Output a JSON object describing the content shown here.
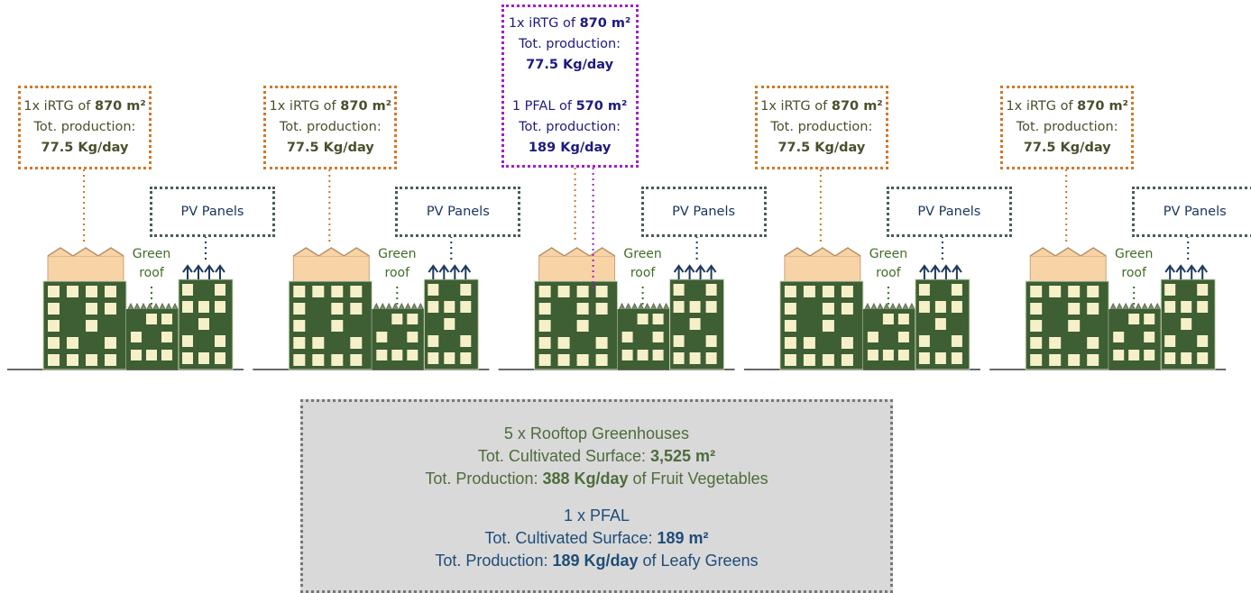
{
  "units": [
    {
      "irtg": {
        "prefix": "1x iRTG of ",
        "area": "870 m²",
        "production_label": "Tot. production:",
        "production": "77.5 Kg/day"
      },
      "pv": "PV Panels",
      "green_roof": "Green roof"
    },
    {
      "irtg": {
        "prefix": "1x iRTG of ",
        "area": "870 m²",
        "production_label": "Tot. production:",
        "production": "77.5 Kg/day"
      },
      "pv": "PV Panels",
      "green_roof": "Green roof"
    },
    {
      "irtg": {
        "prefix": "1x iRTG of ",
        "area": "870 m²",
        "production_label": "Tot. production:",
        "production": "77.5 Kg/day"
      },
      "pfal": {
        "prefix": "1 PFAL of ",
        "area": "570 m²",
        "production_label": "Tot. production:",
        "production": "189 Kg/day"
      },
      "pv": "PV Panels",
      "green_roof": "Green roof"
    },
    {
      "irtg": {
        "prefix": "1x iRTG of ",
        "area": "870 m²",
        "production_label": "Tot. production:",
        "production": "77.5 Kg/day"
      },
      "pv": "PV Panels",
      "green_roof": "Green roof"
    },
    {
      "irtg": {
        "prefix": "1x iRTG of ",
        "area": "870 m²",
        "production_label": "Tot. production:",
        "production": "77.5 Kg/day"
      },
      "pv": "PV Panels",
      "green_roof": "Green roof"
    }
  ],
  "summary": {
    "rooftop": {
      "title": "5 x Rooftop Greenhouses",
      "surface_label": "Tot. Cultivated Surface: ",
      "surface": "3,525 m²",
      "production_label": "Tot. Production: ",
      "production": "388 Kg/day",
      "production_suffix": " of Fruit Vegetables"
    },
    "pfal": {
      "title": "1 x PFAL",
      "surface_label": "Tot. Cultivated Surface: ",
      "surface": "189 m²",
      "production_label": "Tot. Production: ",
      "production": "189 Kg/day",
      "production_suffix": " of Leafy Greens"
    }
  }
}
